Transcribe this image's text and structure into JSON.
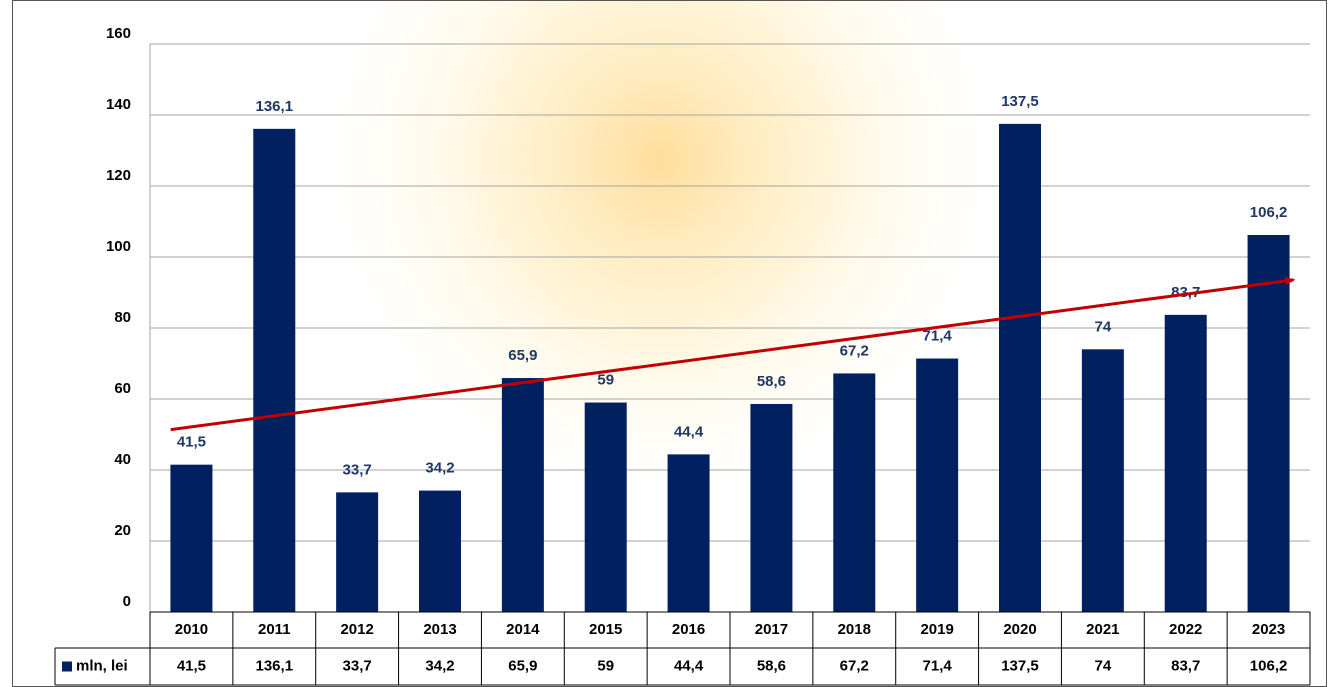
{
  "chart_data": {
    "type": "bar",
    "categories": [
      "2010",
      "2011",
      "2012",
      "2013",
      "2014",
      "2015",
      "2016",
      "2017",
      "2018",
      "2019",
      "2020",
      "2021",
      "2022",
      "2023"
    ],
    "series": [
      {
        "name": "mln, lei",
        "color": "#002060",
        "values": [
          41.5,
          136.1,
          33.7,
          34.2,
          65.9,
          59,
          44.4,
          58.6,
          67.2,
          71.4,
          137.5,
          74,
          83.7,
          106.2
        ],
        "value_labels": [
          "41,5",
          "136,1",
          "33,7",
          "34,2",
          "65,9",
          "59",
          "44,4",
          "58,6",
          "67,2",
          "71,4",
          "137,5",
          "74",
          "83,7",
          "106,2"
        ]
      }
    ],
    "ylim": [
      0,
      160
    ],
    "yticks": [
      0,
      20,
      40,
      60,
      80,
      100,
      120,
      140,
      160
    ],
    "grid": true,
    "trendline": true,
    "trendline_color": "#c00000",
    "data_table": true
  }
}
